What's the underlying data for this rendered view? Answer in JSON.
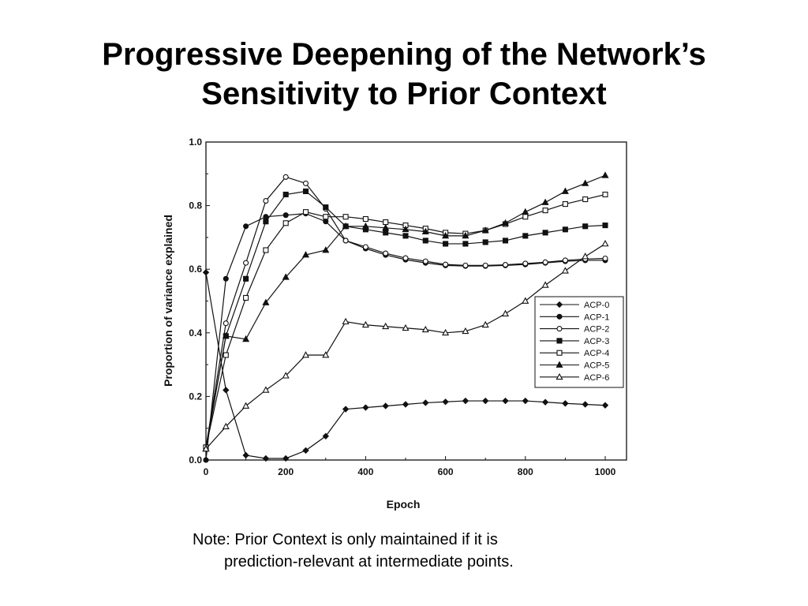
{
  "slide": {
    "title_line_1": "Progressive Deepening of the Network’s",
    "title_line_2": "Sensitivity to Prior Context",
    "note_line_1": "Note:  Prior Context is only maintained if it is",
    "note_line_2": "prediction-relevant at intermediate points."
  },
  "chart_data": {
    "type": "line",
    "title": "",
    "xlabel": "Epoch",
    "ylabel": "Proportion  of  variance  explained",
    "xlim": [
      0,
      1000
    ],
    "ylim": [
      0,
      1.0
    ],
    "x_ticks": [
      0,
      200,
      400,
      600,
      800,
      1000
    ],
    "y_ticks": [
      "0.0",
      "0.2",
      "0.4",
      "0.6",
      "0.8",
      "1.0"
    ],
    "grid": false,
    "legend_position": "right",
    "x": [
      0,
      50,
      100,
      150,
      200,
      250,
      300,
      350,
      400,
      450,
      500,
      550,
      600,
      650,
      700,
      750,
      800,
      850,
      900,
      950,
      1000
    ],
    "series": [
      {
        "name": "ACP-0",
        "marker": "diamond",
        "values": [
          0.59,
          0.22,
          0.015,
          0.005,
          0.005,
          0.03,
          0.075,
          0.16,
          0.165,
          0.17,
          0.175,
          0.18,
          0.183,
          0.186,
          0.186,
          0.186,
          0.186,
          0.182,
          0.178,
          0.175,
          0.172
        ]
      },
      {
        "name": "ACP-1",
        "marker": "circle-filled",
        "values": [
          0.0,
          0.57,
          0.735,
          0.765,
          0.77,
          0.775,
          0.75,
          0.69,
          0.665,
          0.645,
          0.63,
          0.62,
          0.612,
          0.61,
          0.61,
          0.612,
          0.615,
          0.62,
          0.625,
          0.628,
          0.628
        ]
      },
      {
        "name": "ACP-2",
        "marker": "circle-open",
        "values": [
          0.04,
          0.43,
          0.62,
          0.815,
          0.89,
          0.87,
          0.79,
          0.69,
          0.67,
          0.65,
          0.635,
          0.625,
          0.615,
          0.612,
          0.612,
          0.614,
          0.618,
          0.622,
          0.628,
          0.632,
          0.634
        ]
      },
      {
        "name": "ACP-3",
        "marker": "square-filled",
        "values": [
          0.04,
          0.39,
          0.57,
          0.75,
          0.835,
          0.845,
          0.795,
          0.735,
          0.725,
          0.715,
          0.705,
          0.69,
          0.68,
          0.68,
          0.685,
          0.69,
          0.705,
          0.715,
          0.725,
          0.735,
          0.738
        ]
      },
      {
        "name": "ACP-4",
        "marker": "square-open",
        "values": [
          0.04,
          0.33,
          0.51,
          0.66,
          0.745,
          0.78,
          0.765,
          0.765,
          0.758,
          0.748,
          0.738,
          0.728,
          0.715,
          0.712,
          0.722,
          0.742,
          0.765,
          0.785,
          0.805,
          0.82,
          0.835
        ]
      },
      {
        "name": "ACP-5",
        "marker": "triangle-filled",
        "values": [
          0.035,
          0.39,
          0.38,
          0.495,
          0.575,
          0.645,
          0.66,
          0.735,
          0.735,
          0.73,
          0.725,
          0.718,
          0.705,
          0.705,
          0.722,
          0.745,
          0.78,
          0.81,
          0.845,
          0.87,
          0.895
        ]
      },
      {
        "name": "ACP-6",
        "marker": "triangle-open",
        "values": [
          0.035,
          0.105,
          0.17,
          0.22,
          0.265,
          0.33,
          0.33,
          0.435,
          0.425,
          0.42,
          0.415,
          0.41,
          0.4,
          0.405,
          0.425,
          0.46,
          0.5,
          0.55,
          0.595,
          0.64,
          0.68
        ]
      }
    ]
  }
}
